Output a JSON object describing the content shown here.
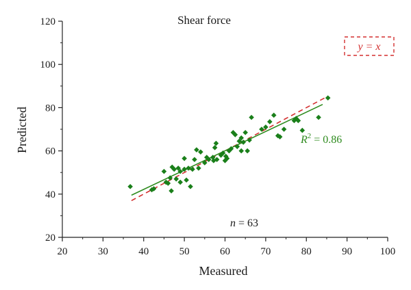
{
  "chart_data": {
    "type": "scatter",
    "title": "Shear force",
    "xlabel": "Measured",
    "ylabel": "Predicted",
    "xlim": [
      20,
      100
    ],
    "ylim": [
      20,
      120
    ],
    "xticks": [
      20,
      30,
      40,
      50,
      60,
      70,
      80,
      90,
      100
    ],
    "yticks": [
      20,
      40,
      60,
      80,
      100,
      120
    ],
    "grid": false,
    "series": [
      {
        "marker": "diamond",
        "color": "#1a7f1a",
        "x": [
          36.7,
          42,
          42.5,
          45,
          45.5,
          46,
          46.5,
          46.8,
          47,
          47.5,
          48,
          48.5,
          49,
          49,
          50,
          50,
          50.5,
          51,
          51.5,
          52,
          52.5,
          53,
          53.5,
          54,
          55,
          55.5,
          56,
          57,
          57.2,
          57.5,
          57.8,
          58,
          59,
          59.5,
          60,
          60.2,
          60.5,
          61,
          61.5,
          62,
          62.5,
          63,
          63.5,
          64,
          64,
          64.5,
          65,
          65.5,
          66,
          66.5,
          69,
          70,
          71,
          72,
          73,
          73.5,
          74.5,
          77,
          77.5,
          78,
          79,
          83,
          85.3
        ],
        "y": [
          43.5,
          42,
          42.5,
          50.5,
          45.5,
          45,
          47.5,
          41.5,
          52.5,
          51.5,
          47,
          52,
          50.5,
          45.5,
          51.5,
          56.5,
          46.5,
          52,
          43.5,
          51.5,
          56,
          60.5,
          52,
          59.5,
          54.5,
          57,
          56,
          57,
          55.5,
          61.5,
          63.5,
          56,
          58,
          59,
          55.5,
          57.5,
          56.5,
          60,
          61,
          68.5,
          67.5,
          62,
          64.5,
          66,
          60,
          64,
          68.5,
          60,
          65,
          75.5,
          70,
          71,
          73.5,
          76.5,
          67,
          66.5,
          70,
          74,
          75,
          74,
          69.5,
          75.5,
          84.5
        ]
      }
    ],
    "fit_line": {
      "color": "#1a7f1a",
      "x": [
        37,
        84
      ],
      "y": [
        39.5,
        81.5
      ]
    },
    "identity_line": {
      "color": "#d32f2f",
      "style": "dashed",
      "x": [
        37,
        85
      ],
      "y": [
        37,
        85
      ]
    },
    "annotations": {
      "legend_identity": "y = x",
      "r2_label": "R",
      "r2_sup": "2",
      "r2_value": " = 0.86",
      "n_label": "n",
      "n_value": " = 63"
    }
  }
}
